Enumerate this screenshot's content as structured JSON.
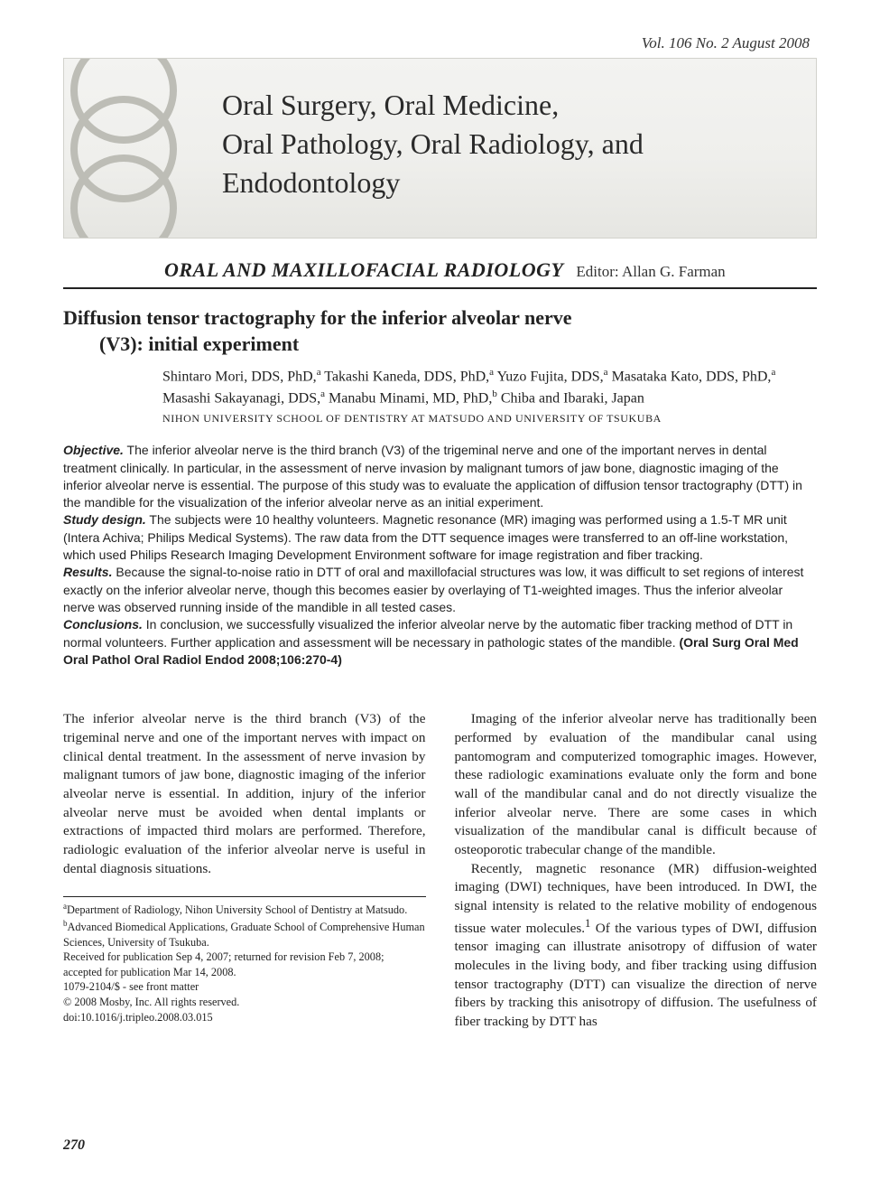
{
  "issue_line": "Vol. 106   No. 2   August 2008",
  "journal_title_lines": [
    "Oral Surgery, Oral Medicine,",
    "Oral Pathology, Oral Radiology, and",
    "Endodontology"
  ],
  "banner": {
    "bg_gradient_top": "#f3f3f1",
    "bg_gradient_mid": "#efefec",
    "bg_gradient_bottom": "#e6e6e2",
    "border_color": "#d2d2cc",
    "ring_stroke": "#bdbdb6",
    "ring_stroke_width": 8
  },
  "section": {
    "name": "ORAL AND MAXILLOFACIAL RADIOLOGY",
    "editor_label": "Editor: Allan G. Farman"
  },
  "article": {
    "title_line1": "Diffusion tensor tractography for the inferior alveolar nerve",
    "title_line2": "(V3): initial experiment",
    "authors_html": "Shintaro Mori, DDS, PhD,<sup>a</sup> Takashi Kaneda, DDS, PhD,<sup>a</sup> Yuzo Fujita, DDS,<sup>a</sup> Masataka Kato, DDS, PhD,<sup>a</sup> Masashi Sakayanagi, DDS,<sup>a</sup> Manabu Minami, MD, PhD,<sup>b</sup> Chiba and Ibaraki, Japan",
    "affil_caps": "NIHON UNIVERSITY SCHOOL OF DENTISTRY AT MATSUDO AND UNIVERSITY OF TSUKUBA"
  },
  "abstract": {
    "objective_label": "Objective.",
    "objective": " The inferior alveolar nerve is the third branch (V3) of the trigeminal nerve and one of the important nerves in dental treatment clinically. In particular, in the assessment of nerve invasion by malignant tumors of jaw bone, diagnostic imaging of the inferior alveolar nerve is essential. The purpose of this study was to evaluate the application of diffusion tensor tractography (DTT) in the mandible for the visualization of the inferior alveolar nerve as an initial experiment.",
    "study_label": "Study design.",
    "study": " The subjects were 10 healthy volunteers. Magnetic resonance (MR) imaging was performed using a 1.5-T MR unit (Intera Achiva; Philips Medical Systems). The raw data from the DTT sequence images were transferred to an off-line workstation, which used Philips Research Imaging Development Environment software for image registration and fiber tracking.",
    "results_label": "Results.",
    "results": " Because the signal-to-noise ratio in DTT of oral and maxillofacial structures was low, it was difficult to set regions of interest exactly on the inferior alveolar nerve, though this becomes easier by overlaying of T1-weighted images. Thus the inferior alveolar nerve was observed running inside of the mandible in all tested cases.",
    "conclusions_label": "Conclusions.",
    "conclusions": " In conclusion, we successfully visualized the inferior alveolar nerve by the automatic fiber tracking method of DTT in normal volunteers. Further application and assessment will be necessary in pathologic states of the mandible. ",
    "citation": "(Oral Surg Oral Med Oral Pathol Oral Radiol Endod 2008;106:270-4)"
  },
  "body": {
    "left_p1": "The inferior alveolar nerve is the third branch (V3) of the trigeminal nerve and one of the important nerves with impact on clinical dental treatment. In the assessment of nerve invasion by malignant tumors of jaw bone, diagnostic imaging of the inferior alveolar nerve is essential. In addition, injury of the inferior alveolar nerve must be avoided when dental implants or extractions of impacted third molars are performed. Therefore, radiologic evaluation of the inferior alveolar nerve is useful in dental diagnosis situations.",
    "right_p1": "Imaging of the inferior alveolar nerve has traditionally been performed by evaluation of the mandibular canal using pantomogram and computerized tomographic images. However, these radiologic examinations evaluate only the form and bone wall of the mandibular canal and do not directly visualize the inferior alveolar nerve. There are some cases in which visualization of the mandibular canal is difficult because of osteoporotic trabecular change of the mandible.",
    "right_p2_html": "Recently, magnetic resonance (MR) diffusion-weighted imaging (DWI) techniques, have been introduced. In DWI, the signal intensity is related to the relative mobility of endogenous tissue water molecules.<sup>1</sup> Of the various types of DWI, diffusion tensor imaging can illustrate anisotropy of diffusion of water molecules in the living body, and fiber tracking using diffusion tensor tractography (DTT) can visualize the direction of nerve fibers by tracking this anisotropy of diffusion. The usefulness of fiber tracking by DTT has"
  },
  "footnotes": {
    "a": "Department of Radiology, Nihon University School of Dentistry at Matsudo.",
    "b": "Advanced Biomedical Applications, Graduate School of Comprehensive Human Sciences, University of Tsukuba.",
    "received": "Received for publication Sep 4, 2007; returned for revision Feb 7, 2008; accepted for publication Mar 14, 2008.",
    "issn": "1079-2104/$ - see front matter",
    "copyright": "© 2008 Mosby, Inc. All rights reserved.",
    "doi": "doi:10.1016/j.tripleo.2008.03.015"
  },
  "page_number": "270",
  "colors": {
    "text": "#222222",
    "rule": "#222222",
    "page_bg": "#ffffff"
  },
  "typography": {
    "body_font": "Times New Roman",
    "abstract_font": "Arial",
    "title_fontsize_pt": 17,
    "section_fontsize_pt": 16,
    "body_fontsize_pt": 11,
    "abstract_fontsize_pt": 10,
    "footnote_fontsize_pt": 9
  }
}
